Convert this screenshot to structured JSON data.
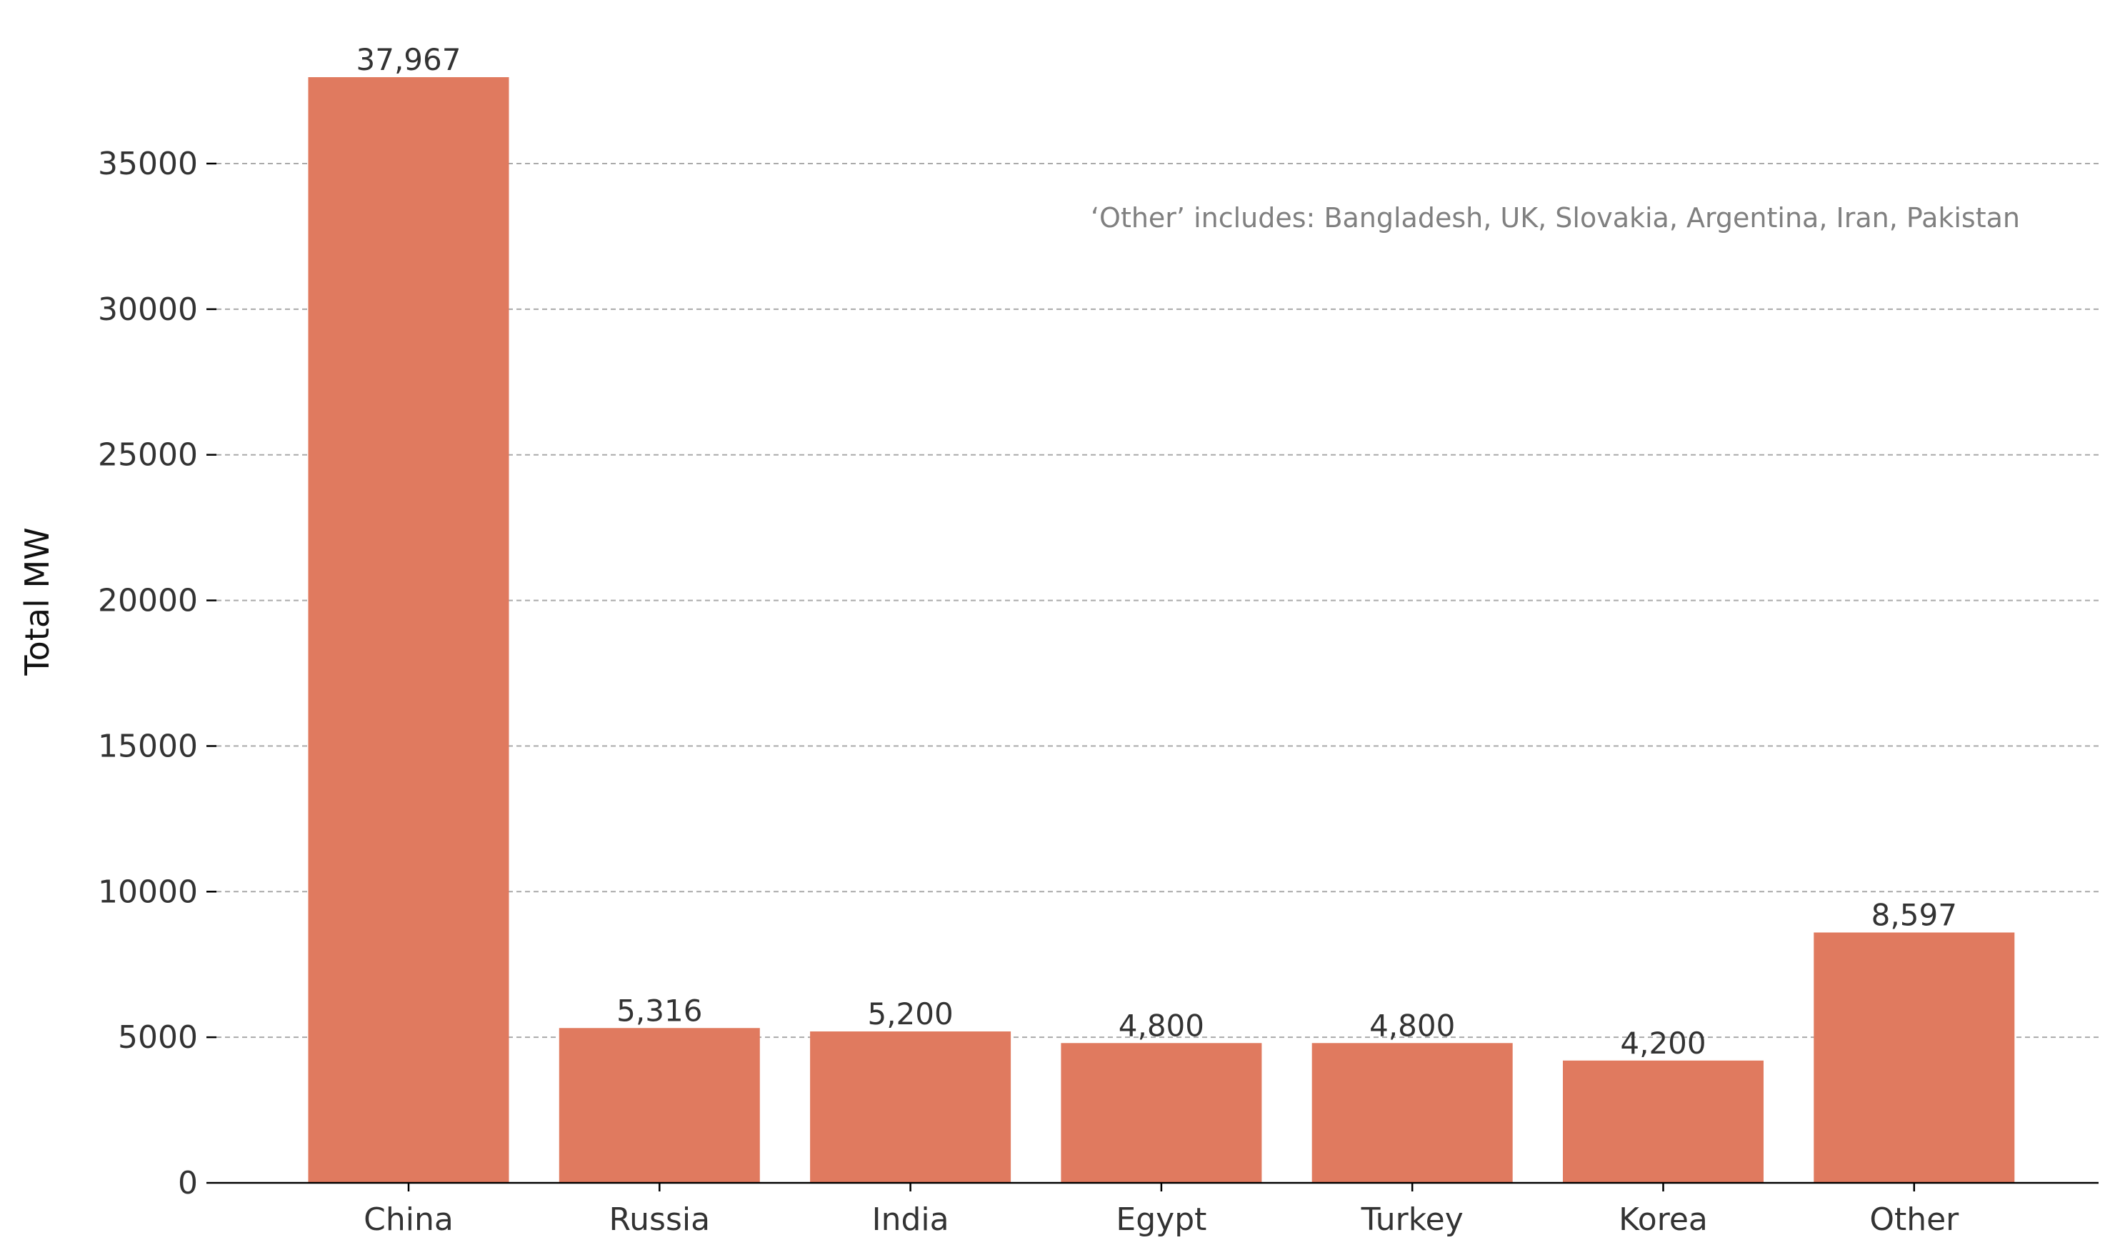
{
  "chart_data": {
    "type": "bar",
    "categories": [
      "China",
      "Russia",
      "India",
      "Egypt",
      "Turkey",
      "Korea",
      "Other"
    ],
    "values": [
      37967,
      5316,
      5200,
      4800,
      4800,
      4200,
      8597
    ],
    "data_labels": [
      "37,967",
      "5,316",
      "5,200",
      "4,800",
      "4,800",
      "4,200",
      "8,597"
    ],
    "title": "",
    "xlabel": "",
    "ylabel": "Total MW",
    "ylim": [
      0,
      38500
    ],
    "yticks": [
      0,
      5000,
      10000,
      15000,
      20000,
      25000,
      30000,
      35000
    ],
    "ytick_labels": [
      "0",
      "5000",
      "10000",
      "15000",
      "20000",
      "25000",
      "30000",
      "35000"
    ],
    "grid": "horizontal dashed",
    "bar_color": "#E07A5F",
    "annotation": "‘Other’ includes: Bangladesh, UK, Slovakia, Argentina, Iran, Pakistan"
  }
}
